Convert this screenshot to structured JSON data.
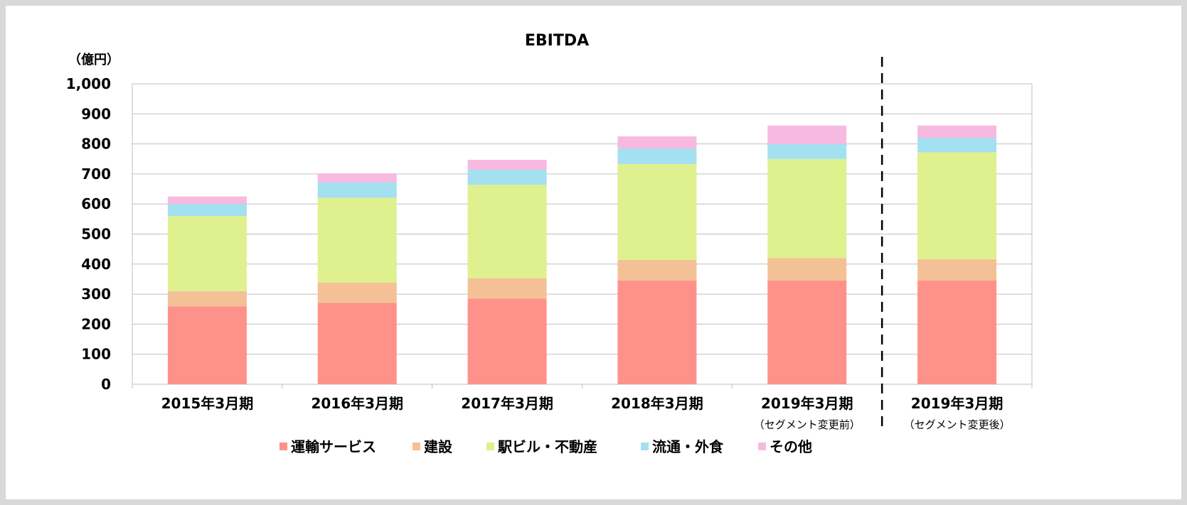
{
  "chart_data": {
    "type": "bar",
    "stacked": true,
    "title": "EBITDA",
    "unit_label": "（億円）",
    "ylim": [
      0,
      1000
    ],
    "yticks": [
      0,
      100,
      200,
      300,
      400,
      500,
      600,
      700,
      800,
      900,
      1000
    ],
    "ytick_labels": [
      "0",
      "100",
      "200",
      "300",
      "400",
      "500",
      "600",
      "700",
      "800",
      "900",
      "1,000"
    ],
    "grid": true,
    "legend_position": "bottom",
    "categories": [
      "2015年3月期",
      "2016年3月期",
      "2017年3月期",
      "2018年3月期",
      "2019年3月期",
      "2019年3月期"
    ],
    "category_sublabels": [
      "",
      "",
      "",
      "",
      "（セグメント変更前）",
      "（セグメント変更後）"
    ],
    "separator_after_category": 4,
    "series": [
      {
        "name": "運輸サービス",
        "color": "#ff918b",
        "values": [
          259,
          271,
          285,
          345,
          345,
          345
        ]
      },
      {
        "name": "建設",
        "color": "#f4c197",
        "values": [
          51,
          67,
          68,
          69,
          75,
          71
        ]
      },
      {
        "name": "駅ビル・不動産",
        "color": "#dff08f",
        "values": [
          250,
          283,
          311,
          319,
          330,
          356
        ]
      },
      {
        "name": "流通・外食",
        "color": "#a3e0f0",
        "values": [
          40,
          51,
          50,
          52,
          50,
          48
        ]
      },
      {
        "name": "その他",
        "color": "#f8b9e0",
        "values": [
          25,
          30,
          33,
          40,
          61,
          41
        ]
      }
    ]
  }
}
